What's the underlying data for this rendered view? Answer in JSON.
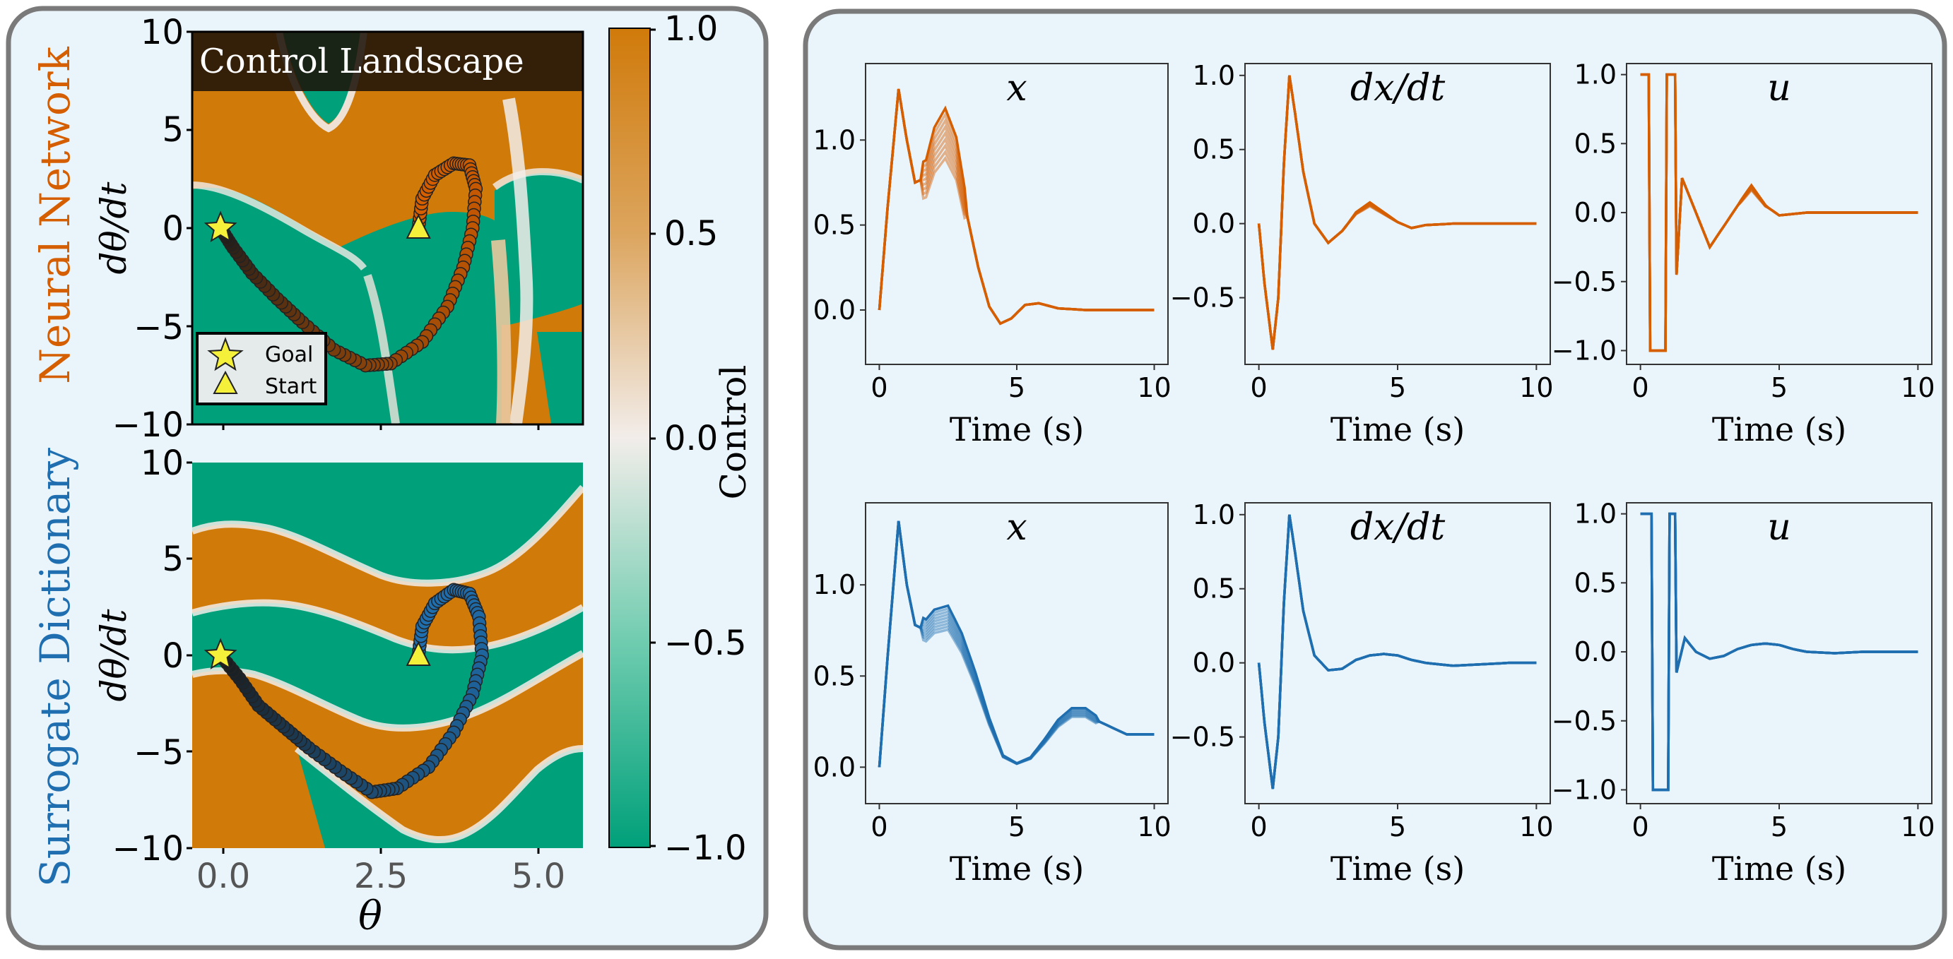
{
  "left_panel": {
    "title": "Control Landscape",
    "row_labels": [
      "Neural Network",
      "Surrogate Dictionary"
    ],
    "ylabel": "dθ/dt",
    "xlabel": "θ",
    "colorbar_label": "Control",
    "legend": [
      {
        "label": "Goal",
        "marker": "star"
      },
      {
        "label": "Start",
        "marker": "triangle"
      }
    ]
  },
  "colors": {
    "orange": "#D55E00",
    "blue": "#1F6FB0",
    "positive_control": "#D07A0A",
    "negative_control": "#00A07A",
    "panel_bg": "#EAF4FB",
    "panel_border": "#7A7A7A"
  },
  "chart_data": [
    {
      "type": "heatmap",
      "name": "nn-landscape",
      "xlim": [
        -0.45,
        5.75
      ],
      "ylim": [
        -10,
        10
      ],
      "xticks": [
        "0.0",
        "2.5",
        "5.0"
      ],
      "yticks": [
        "10",
        "5",
        "0",
        "−5",
        "−10"
      ],
      "colorbar": {
        "range": [
          -1.0,
          1.0
        ],
        "ticks": [
          "1.0",
          "0.5",
          "0.0",
          "−0.5",
          "−1.0"
        ]
      },
      "goal": [
        0.0,
        0.0
      ],
      "start": [
        3.14,
        0.0
      ],
      "trajectory_points": [
        [
          3.14,
          0.0
        ],
        [
          3.2,
          1.5
        ],
        [
          3.4,
          2.7
        ],
        [
          3.7,
          3.3
        ],
        [
          3.95,
          3.2
        ],
        [
          4.05,
          2.0
        ],
        [
          4.0,
          0.0
        ],
        [
          3.85,
          -2.0
        ],
        [
          3.6,
          -4.0
        ],
        [
          3.2,
          -5.8
        ],
        [
          2.7,
          -6.9
        ],
        [
          2.3,
          -7.0
        ],
        [
          1.8,
          -6.2
        ],
        [
          1.3,
          -4.8
        ],
        [
          0.9,
          -3.6
        ],
        [
          0.5,
          -2.3
        ],
        [
          0.2,
          -1.0
        ],
        [
          0.0,
          0.0
        ]
      ]
    },
    {
      "type": "heatmap",
      "name": "sd-landscape",
      "xlim": [
        -0.45,
        5.75
      ],
      "ylim": [
        -10,
        10
      ],
      "xticks": [
        "0.0",
        "2.5",
        "5.0"
      ],
      "yticks": [
        "10",
        "5",
        "0",
        "−5",
        "−10"
      ],
      "goal": [
        0.0,
        0.0
      ],
      "start": [
        3.14,
        0.0
      ],
      "trajectory_points": [
        [
          3.14,
          0.0
        ],
        [
          3.2,
          1.5
        ],
        [
          3.4,
          2.7
        ],
        [
          3.7,
          3.4
        ],
        [
          3.95,
          3.2
        ],
        [
          4.1,
          2.0
        ],
        [
          4.15,
          0.0
        ],
        [
          4.0,
          -2.0
        ],
        [
          3.7,
          -4.0
        ],
        [
          3.3,
          -5.8
        ],
        [
          2.8,
          -6.9
        ],
        [
          2.4,
          -7.1
        ],
        [
          1.9,
          -6.0
        ],
        [
          1.4,
          -4.8
        ],
        [
          1.0,
          -3.7
        ],
        [
          0.6,
          -2.6
        ],
        [
          0.3,
          -1.2
        ],
        [
          0.0,
          0.0
        ]
      ]
    },
    {
      "type": "line",
      "name": "nn-x",
      "title": "x",
      "xlabel": "Time (s)",
      "xlim": [
        -0.5,
        10.5
      ],
      "ylim": [
        -0.32,
        1.45
      ],
      "xticks": [
        "0",
        "5",
        "10"
      ],
      "yticks": [
        "1.0",
        "0.5",
        "0.0"
      ],
      "x": [
        0,
        0.3,
        0.7,
        1.0,
        1.3,
        1.7,
        2.0,
        2.4,
        2.8,
        3.2,
        3.6,
        4.0,
        4.4,
        4.8,
        5.3,
        5.8,
        6.5,
        7.5,
        8.5,
        10
      ],
      "values": [
        0,
        0.6,
        1.3,
        1.0,
        0.75,
        0.78,
        0.95,
        1.05,
        0.9,
        0.55,
        0.25,
        0.02,
        -0.08,
        -0.05,
        0.03,
        0.04,
        0.01,
        0.0,
        0.0,
        0.0
      ],
      "series": [
        {
          "name": "",
          "scale": 0.75
        },
        {
          "name": "",
          "scale": 0.8
        },
        {
          "name": "",
          "scale": 0.85
        },
        {
          "name": "",
          "scale": 0.9
        },
        {
          "name": "",
          "scale": 0.95
        },
        {
          "name": "",
          "scale": 1.0
        },
        {
          "name": "",
          "scale": 1.05
        },
        {
          "name": "",
          "scale": 1.1
        },
        {
          "name": "",
          "scale": 1.15
        },
        {
          "name": "",
          "scale": 1.2
        }
      ]
    },
    {
      "type": "line",
      "name": "nn-dxdt",
      "title": "dx/dt",
      "xlabel": "Time (s)",
      "xlim": [
        -0.5,
        10.5
      ],
      "ylim": [
        -0.95,
        1.08
      ],
      "xticks": [
        "0",
        "5",
        "10"
      ],
      "yticks": [
        "1.0",
        "0.5",
        "0.0",
        "−0.5"
      ],
      "x": [
        0,
        0.2,
        0.5,
        0.7,
        0.9,
        1.1,
        1.3,
        1.6,
        2.0,
        2.5,
        3.0,
        3.5,
        4.0,
        4.5,
        5.0,
        5.5,
        6.0,
        7.0,
        8.0,
        10
      ],
      "values": [
        0,
        -0.4,
        -0.85,
        -0.5,
        0.4,
        1.0,
        0.75,
        0.35,
        0.0,
        -0.13,
        -0.05,
        0.07,
        0.13,
        0.07,
        0.01,
        -0.03,
        -0.01,
        0.0,
        0.0,
        0.0
      ]
    },
    {
      "type": "line",
      "name": "nn-u",
      "title": "u",
      "xlabel": "Time (s)",
      "xlim": [
        -0.5,
        10.5
      ],
      "ylim": [
        -1.1,
        1.08
      ],
      "xticks": [
        "0",
        "5",
        "10"
      ],
      "yticks": [
        "1.0",
        "0.5",
        "0.0",
        "−0.5",
        "−1.0"
      ],
      "x": [
        0,
        0.3,
        0.35,
        0.9,
        0.95,
        1.25,
        1.3,
        1.5,
        2.0,
        2.5,
        3.0,
        3.5,
        4.0,
        4.5,
        5.0,
        6.0,
        7.0,
        10
      ],
      "values": [
        1,
        1,
        -1,
        -1,
        1,
        1,
        -0.45,
        0.25,
        0.0,
        -0.25,
        -0.1,
        0.05,
        0.18,
        0.05,
        -0.02,
        0.0,
        0.0,
        0.0
      ]
    },
    {
      "type": "line",
      "name": "sd-x",
      "title": "x",
      "xlabel": "Time (s)",
      "xlim": [
        -0.5,
        10.5
      ],
      "ylim": [
        -0.2,
        1.45
      ],
      "xticks": [
        "0",
        "5",
        "10"
      ],
      "yticks": [
        "1.0",
        "0.5",
        "0.0"
      ],
      "x": [
        0,
        0.3,
        0.7,
        1.0,
        1.3,
        1.7,
        2.0,
        2.5,
        3.0,
        3.5,
        4.0,
        4.5,
        5.0,
        5.5,
        6.0,
        6.5,
        7.0,
        7.5,
        8.0,
        9.0,
        10
      ],
      "values": [
        0,
        0.6,
        1.35,
        1.0,
        0.78,
        0.75,
        0.8,
        0.82,
        0.68,
        0.48,
        0.25,
        0.06,
        0.02,
        0.05,
        0.14,
        0.24,
        0.3,
        0.3,
        0.25,
        0.18,
        0.18
      ]
    },
    {
      "type": "line",
      "name": "sd-dxdt",
      "title": "dx/dt",
      "xlabel": "Time (s)",
      "xlim": [
        -0.5,
        10.5
      ],
      "ylim": [
        -0.95,
        1.08
      ],
      "xticks": [
        "0",
        "5",
        "10"
      ],
      "yticks": [
        "1.0",
        "0.5",
        "0.0",
        "−0.5"
      ],
      "x": [
        0,
        0.2,
        0.5,
        0.7,
        0.9,
        1.1,
        1.3,
        1.6,
        2.0,
        2.5,
        3.0,
        3.5,
        4.0,
        4.5,
        5.0,
        5.5,
        6.0,
        7.0,
        8.0,
        9.0,
        10
      ],
      "values": [
        0,
        -0.4,
        -0.85,
        -0.5,
        0.4,
        1.0,
        0.75,
        0.35,
        0.05,
        -0.05,
        -0.04,
        0.02,
        0.05,
        0.06,
        0.05,
        0.02,
        0.0,
        -0.02,
        -0.01,
        0.0,
        0.0
      ]
    },
    {
      "type": "line",
      "name": "sd-u",
      "title": "u",
      "xlabel": "Time (s)",
      "xlim": [
        -0.5,
        10.5
      ],
      "ylim": [
        -1.1,
        1.08
      ],
      "xticks": [
        "0",
        "5",
        "10"
      ],
      "yticks": [
        "1.0",
        "0.5",
        "0.0",
        "−0.5",
        "−1.0"
      ],
      "x": [
        0,
        0.4,
        0.45,
        1.0,
        1.05,
        1.25,
        1.3,
        1.6,
        2.0,
        2.5,
        3.0,
        3.5,
        4.0,
        4.5,
        5.0,
        5.5,
        6.0,
        7.0,
        8.0,
        9.0,
        10
      ],
      "values": [
        1,
        1,
        -1,
        -1,
        1,
        1,
        -0.15,
        0.1,
        0.0,
        -0.05,
        -0.03,
        0.02,
        0.05,
        0.06,
        0.05,
        0.02,
        0.0,
        -0.01,
        0.0,
        0.0,
        0.0
      ]
    }
  ]
}
